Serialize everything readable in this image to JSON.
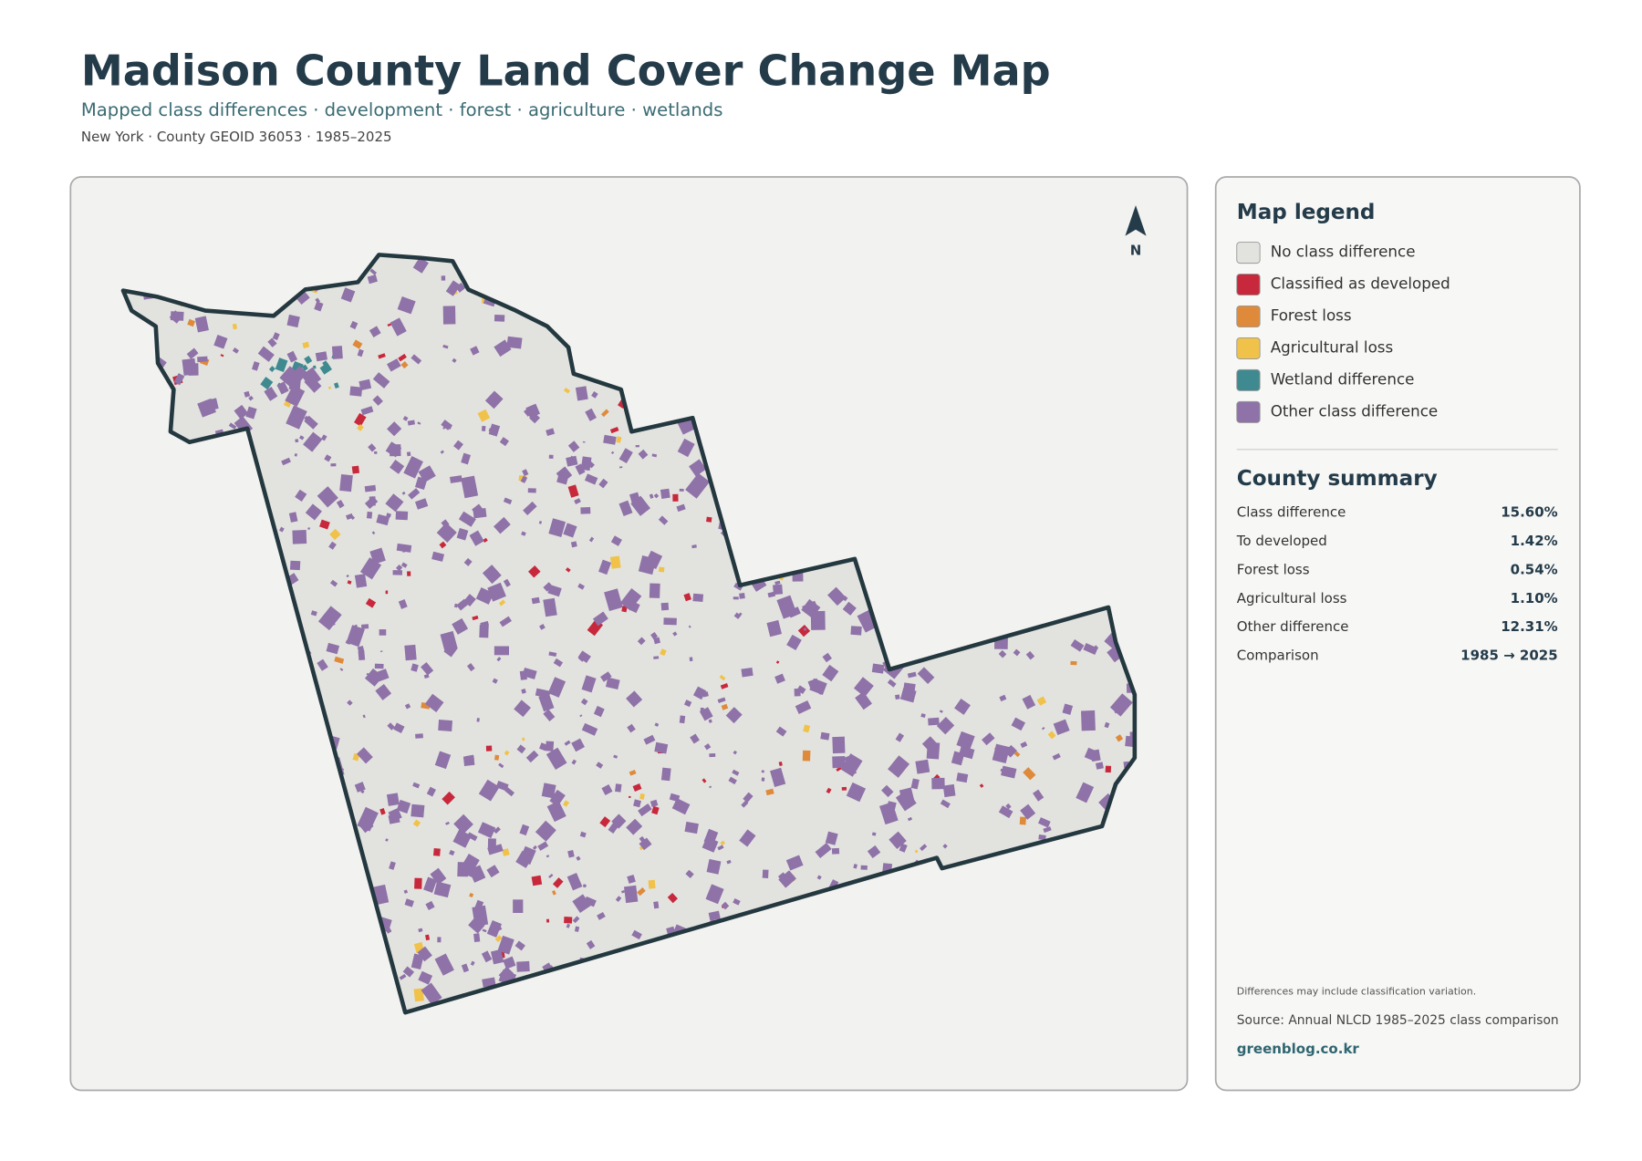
{
  "header": {
    "title": "Madison County Land Cover Change Map",
    "subtitle": "Mapped class differences · development · forest · agriculture · wetlands",
    "meta": "New York · County GEOID 36053 · 1985–2025"
  },
  "map": {
    "north_label": "N"
  },
  "legend": {
    "title": "Map legend",
    "items": [
      {
        "label": "No class difference",
        "color": "#e2e2de"
      },
      {
        "label": "Classified as developed",
        "color": "#c8283c"
      },
      {
        "label": "Forest loss",
        "color": "#df8a3a"
      },
      {
        "label": "Agricultural loss",
        "color": "#f0c24a"
      },
      {
        "label": "Wetland difference",
        "color": "#3f8a90"
      },
      {
        "label": "Other class difference",
        "color": "#8f72a8"
      }
    ]
  },
  "summary": {
    "title": "County summary",
    "rows": [
      {
        "label": "Class difference",
        "value": "15.60%"
      },
      {
        "label": "To developed",
        "value": "1.42%"
      },
      {
        "label": "Forest loss",
        "value": "0.54%"
      },
      {
        "label": "Agricultural loss",
        "value": "1.10%"
      },
      {
        "label": "Other difference",
        "value": "12.31%"
      },
      {
        "label": "Comparison",
        "value": "1985 → 2025"
      }
    ]
  },
  "footer": {
    "note": "Differences may include classification variation.",
    "source": "Source: Annual NLCD 1985–2025 class comparison",
    "credit": "greenblog.co.kr"
  }
}
